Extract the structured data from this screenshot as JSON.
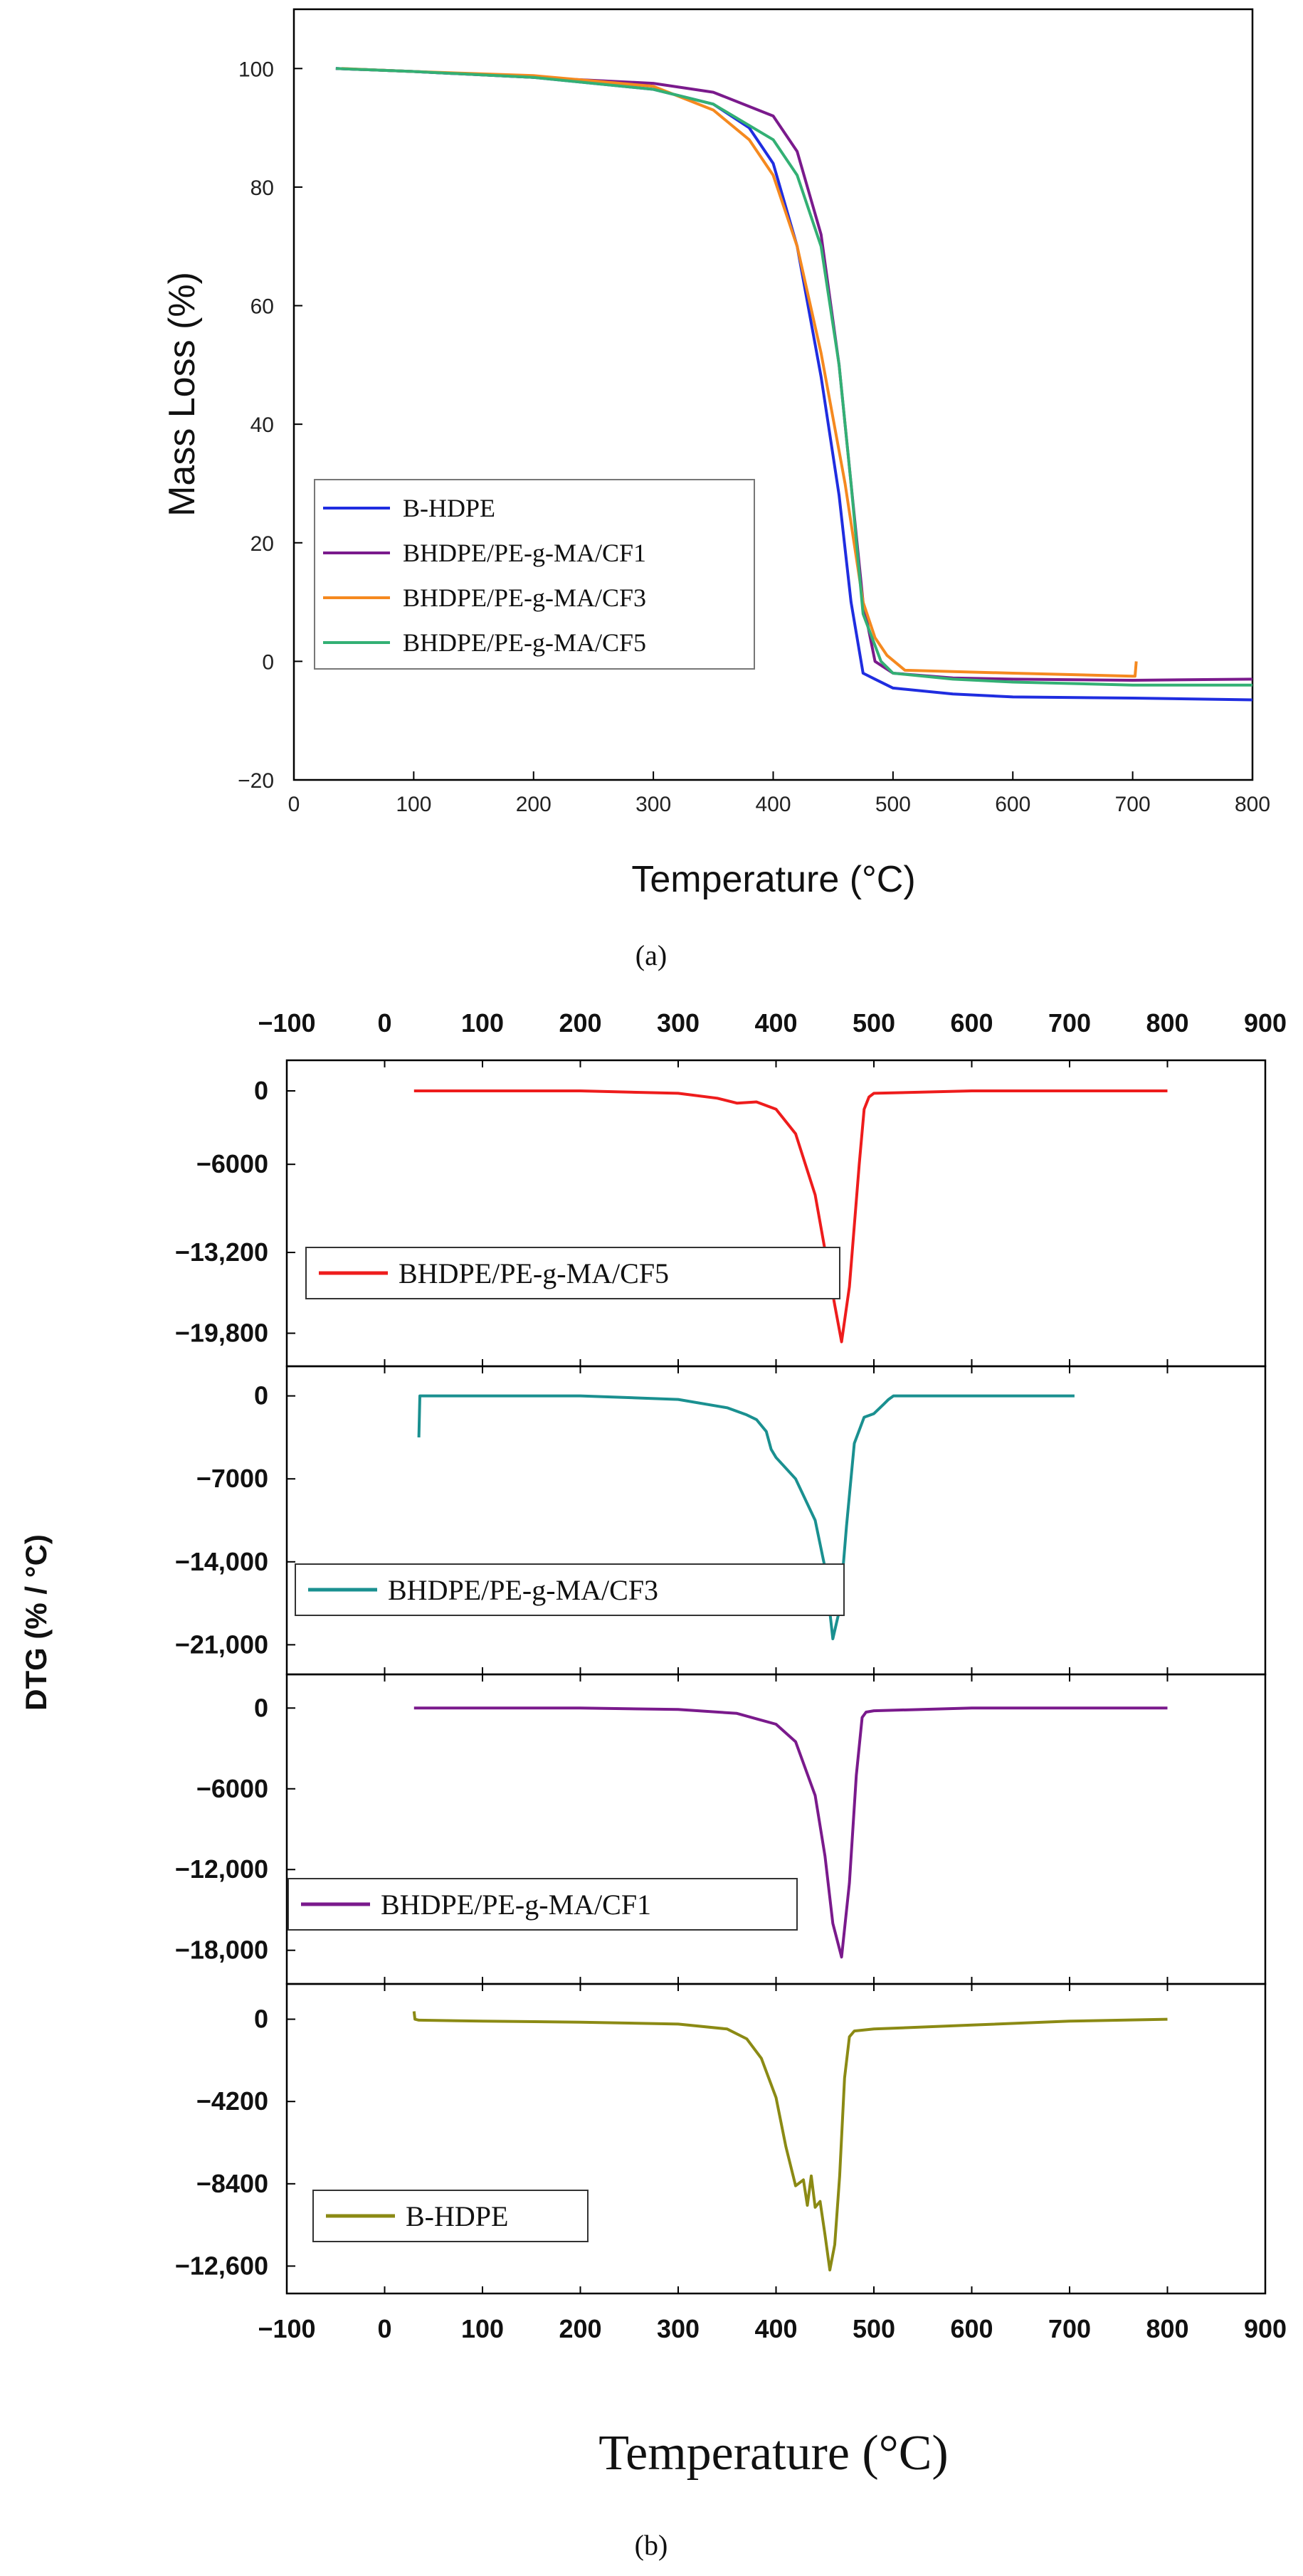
{
  "chart_data": [
    {
      "id": "a",
      "type": "line",
      "caption": "(a)",
      "xlabel": "Temperature (°C)",
      "ylabel": "Mass Loss (%)",
      "xlim": [
        0,
        800
      ],
      "ylim": [
        -20,
        110
      ],
      "xticks": [
        0,
        100,
        200,
        300,
        400,
        500,
        600,
        700,
        800
      ],
      "yticks": [
        -20,
        0,
        20,
        40,
        60,
        80,
        100
      ],
      "ytick_labels": [
        "−20",
        "0",
        "20",
        "40",
        "60",
        "80",
        "100"
      ],
      "series": [
        {
          "name": "B-HDPE",
          "color": "#1f2de0",
          "x": [
            35,
            100,
            200,
            300,
            350,
            380,
            400,
            420,
            440,
            455,
            465,
            475,
            485,
            500,
            550,
            600,
            700,
            800
          ],
          "y": [
            100,
            99.5,
            98.5,
            96.5,
            94,
            90,
            84,
            70,
            48,
            28,
            10,
            -2,
            -3,
            -4.5,
            -5.5,
            -6,
            -6.2,
            -6.5
          ]
        },
        {
          "name": "BHDPE/PE-g-MA/CF1",
          "color": "#7a1a8c",
          "x": [
            35,
            100,
            200,
            300,
            350,
            400,
            420,
            440,
            455,
            465,
            475,
            485,
            500,
            550,
            600,
            700,
            800
          ],
          "y": [
            100,
            99.5,
            98.5,
            97.5,
            96,
            92,
            86,
            72,
            50,
            30,
            10,
            0,
            -2,
            -2.8,
            -3,
            -3.2,
            -3
          ]
        },
        {
          "name": "BHDPE/PE-g-MA/CF3",
          "color": "#f5891f",
          "x": [
            40,
            100,
            200,
            300,
            350,
            380,
            400,
            420,
            440,
            460,
            475,
            485,
            495,
            510,
            600,
            700,
            702,
            703
          ],
          "y": [
            100,
            99.5,
            98.8,
            97,
            93,
            88,
            82,
            70,
            52,
            30,
            10,
            4,
            1,
            -1.5,
            -2,
            -2.5,
            -2.5,
            0
          ]
        },
        {
          "name": "BHDPE/PE-g-MA/CF5",
          "color": "#33b074",
          "x": [
            35,
            100,
            200,
            300,
            350,
            400,
            420,
            440,
            455,
            465,
            475,
            490,
            500,
            550,
            600,
            700,
            800
          ],
          "y": [
            100,
            99.5,
            98.5,
            96.5,
            94,
            88,
            82,
            70,
            50,
            30,
            8,
            0,
            -2,
            -3,
            -3.5,
            -4,
            -4
          ]
        }
      ]
    },
    {
      "id": "b",
      "type": "line",
      "caption": "(b)",
      "xlabel": "Temperature (°C)",
      "ylabel": "DTG (% / °C)",
      "xlim": [
        -100,
        900
      ],
      "xticks": [
        -100,
        0,
        100,
        200,
        300,
        400,
        500,
        600,
        700,
        800,
        900
      ],
      "xtick_labels": [
        "−100",
        "0",
        "100",
        "200",
        "300",
        "400",
        "500",
        "600",
        "700",
        "800",
        "900"
      ],
      "panels": [
        {
          "name": "BHDPE/PE-g-MA/CF5",
          "color": "#ee1c1c",
          "ylim": [
            -22500,
            2500
          ],
          "yticks": [
            0,
            -6000,
            -13200,
            -19800
          ],
          "ytick_labels": [
            "0",
            "−6000",
            "−13,200",
            "−19,800"
          ],
          "x": [
            30,
            100,
            200,
            300,
            340,
            360,
            380,
            400,
            420,
            440,
            450,
            460,
            467,
            475,
            485,
            490,
            495,
            500,
            600,
            700,
            800
          ],
          "y": [
            0,
            0,
            0,
            -200,
            -600,
            -1000,
            -900,
            -1500,
            -3500,
            -8500,
            -13000,
            -17500,
            -20500,
            -16000,
            -6000,
            -1500,
            -500,
            -200,
            0,
            0,
            0
          ]
        },
        {
          "name": "BHDPE/PE-g-MA/CF3",
          "color": "#1a9090",
          "ylim": [
            -23500,
            2500
          ],
          "yticks": [
            0,
            -7000,
            -14000,
            -21000
          ],
          "ytick_labels": [
            "0",
            "−7000",
            "−14,000",
            "−21,000"
          ],
          "x": [
            35,
            36,
            38,
            40,
            100,
            200,
            300,
            350,
            370,
            380,
            390,
            395,
            400,
            420,
            440,
            450,
            458,
            465,
            472,
            480,
            490,
            500,
            510,
            515,
            520,
            600,
            700,
            705
          ],
          "y": [
            -3500,
            0,
            0,
            0,
            0,
            0,
            -300,
            -1000,
            -1600,
            -2000,
            -3000,
            -4500,
            -5200,
            -7000,
            -10500,
            -14500,
            -20500,
            -18000,
            -11000,
            -4000,
            -1800,
            -1500,
            -700,
            -300,
            0,
            0,
            0,
            0
          ]
        },
        {
          "name": "BHDPE/PE-g-MA/CF1",
          "color": "#7a1a8c",
          "ylim": [
            -20500,
            2500
          ],
          "yticks": [
            0,
            -6000,
            -12000,
            -18000
          ],
          "ytick_labels": [
            "0",
            "−6000",
            "−12,000",
            "−18,000"
          ],
          "x": [
            30,
            100,
            200,
            300,
            360,
            380,
            400,
            420,
            440,
            450,
            458,
            467,
            475,
            482,
            488,
            492,
            500,
            600,
            700,
            800
          ],
          "y": [
            0,
            0,
            0,
            -100,
            -400,
            -800,
            -1200,
            -2500,
            -6500,
            -11000,
            -16000,
            -18500,
            -13000,
            -5000,
            -700,
            -300,
            -200,
            0,
            0,
            0
          ]
        },
        {
          "name": "B-HDPE",
          "color": "#8b8a14",
          "ylim": [
            -14000,
            1800
          ],
          "yticks": [
            0,
            -4200,
            -8400,
            -12600
          ],
          "ytick_labels": [
            "0",
            "−4200",
            "−8400",
            "−12,600"
          ],
          "x": [
            30,
            31,
            35,
            100,
            200,
            300,
            350,
            370,
            385,
            400,
            410,
            420,
            428,
            432,
            436,
            440,
            445,
            450,
            455,
            460,
            465,
            470,
            475,
            480,
            500,
            600,
            700,
            800
          ],
          "y": [
            400,
            0,
            -50,
            -100,
            -150,
            -250,
            -500,
            -1000,
            -2000,
            -4000,
            -6500,
            -8500,
            -8200,
            -9500,
            -8000,
            -9600,
            -9300,
            -11000,
            -12800,
            -11500,
            -8000,
            -3000,
            -900,
            -600,
            -500,
            -300,
            -100,
            0
          ]
        }
      ]
    }
  ]
}
